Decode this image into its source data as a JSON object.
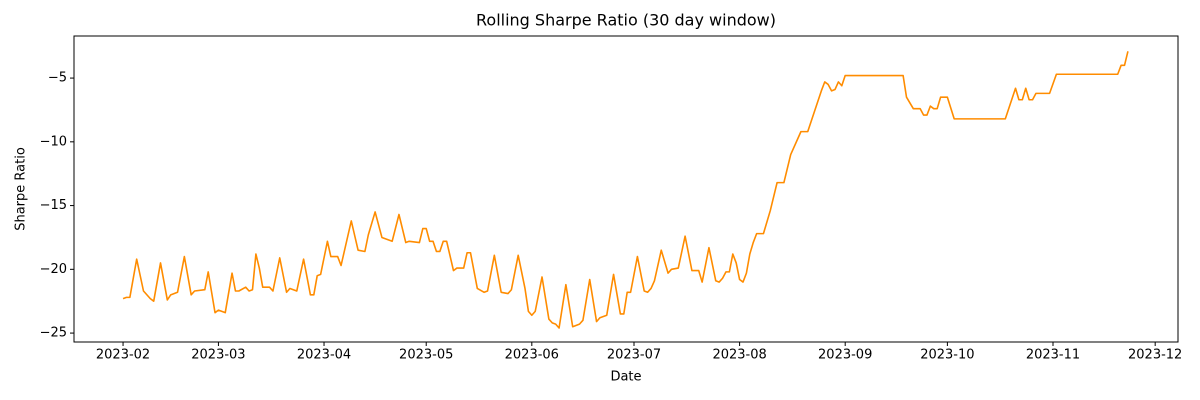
{
  "chart_data": {
    "type": "line",
    "title": "Rolling Sharpe Ratio (30 day window)",
    "x_label": "Date",
    "y_label": "Sharpe Ratio",
    "x": [
      19389,
      19390,
      19391,
      19393,
      19395,
      19397,
      19398,
      19400,
      19402,
      19403,
      19405,
      19407,
      19409,
      19410,
      19413,
      19414,
      19416,
      19417,
      19419,
      19421,
      19422,
      19423,
      19425,
      19426,
      19427,
      19428,
      19429,
      19430,
      19432,
      19433,
      19435,
      19437,
      19438,
      19440,
      19442,
      19444,
      19445,
      19446,
      19447,
      19449,
      19450,
      19452,
      19453,
      19456,
      19458,
      19460,
      19461,
      19463,
      19465,
      19468,
      19470,
      19472,
      19473,
      19476,
      19477,
      19478,
      19479,
      19480,
      19481,
      19482,
      19483,
      19484,
      19486,
      19487,
      19489,
      19490,
      19491,
      19493,
      19495,
      19496,
      19498,
      19500,
      19502,
      19503,
      19505,
      19507,
      19508,
      19509,
      19510,
      19512,
      19514,
      19515,
      19516,
      19517,
      19519,
      19521,
      19523,
      19524,
      19526,
      19528,
      19529,
      19531,
      19533,
      19535,
      19536,
      19537,
      19538,
      19540,
      19542,
      19543,
      19544,
      19545,
      19547,
      19549,
      19550,
      19552,
      19554,
      19556,
      19558,
      19559,
      19561,
      19563,
      19564,
      19565,
      19566,
      19567,
      19568,
      19569,
      19570,
      19571,
      19572,
      19573,
      19574,
      19575,
      19577,
      19579,
      19581,
      19583,
      19585,
      19588,
      19590,
      19594,
      19595,
      19596,
      19597,
      19598,
      19599,
      19600,
      19601,
      19618,
      19619,
      19621,
      19623,
      19624,
      19625,
      19626,
      19627,
      19628,
      19629,
      19631,
      19633,
      19648,
      19651,
      19652,
      19653,
      19654,
      19655,
      19656,
      19657,
      19661,
      19663,
      19681,
      19682,
      19683,
      19684
    ],
    "series": [
      {
        "name": "Rolling Sharpe",
        "color": "#ff8c00",
        "values": [
          -22.3,
          -22.2,
          -22.2,
          -19.2,
          -21.7,
          -22.3,
          -22.5,
          -19.5,
          -22.4,
          -22.0,
          -21.8,
          -19.0,
          -22.0,
          -21.7,
          -21.6,
          -20.2,
          -23.4,
          -23.2,
          -23.4,
          -20.3,
          -21.7,
          -21.7,
          -21.4,
          -21.7,
          -21.6,
          -18.8,
          -19.9,
          -21.4,
          -21.4,
          -21.7,
          -19.1,
          -21.8,
          -21.5,
          -21.7,
          -19.2,
          -22.0,
          -22.0,
          -20.5,
          -20.4,
          -17.8,
          -19.0,
          -19.0,
          -19.7,
          -16.2,
          -18.5,
          -18.6,
          -17.3,
          -15.5,
          -17.5,
          -17.8,
          -15.7,
          -17.9,
          -17.8,
          -17.9,
          -16.8,
          -16.8,
          -17.8,
          -17.8,
          -18.6,
          -18.6,
          -17.8,
          -17.8,
          -20.1,
          -19.9,
          -19.9,
          -18.7,
          -18.7,
          -21.5,
          -21.8,
          -21.7,
          -18.9,
          -21.8,
          -21.9,
          -21.6,
          -18.9,
          -21.5,
          -23.3,
          -23.6,
          -23.3,
          -20.6,
          -23.9,
          -24.2,
          -24.3,
          -24.6,
          -21.2,
          -24.5,
          -24.3,
          -24.0,
          -20.8,
          -24.1,
          -23.8,
          -23.6,
          -20.4,
          -23.5,
          -23.5,
          -21.8,
          -21.8,
          -19.0,
          -21.7,
          -21.8,
          -21.5,
          -20.9,
          -18.5,
          -20.3,
          -20.0,
          -19.9,
          -17.4,
          -20.1,
          -20.1,
          -21.0,
          -18.3,
          -20.9,
          -21.0,
          -20.7,
          -20.2,
          -20.2,
          -18.8,
          -19.5,
          -20.8,
          -21.0,
          -20.3,
          -18.8,
          -17.9,
          -17.2,
          -17.2,
          -15.4,
          -13.2,
          -13.2,
          -11.0,
          -9.2,
          -9.2,
          -6.0,
          -5.3,
          -5.5,
          -6.0,
          -5.9,
          -5.3,
          -5.6,
          -4.8,
          -4.8,
          -6.5,
          -7.4,
          -7.4,
          -7.9,
          -7.9,
          -7.2,
          -7.4,
          -7.4,
          -6.5,
          -6.5,
          -8.2,
          -8.2,
          -5.8,
          -6.7,
          -6.7,
          -5.8,
          -6.7,
          -6.7,
          -6.2,
          -6.2,
          -4.7,
          -4.7,
          -4.0,
          -4.0,
          -2.9
        ]
      }
    ],
    "xlim": [
      19374.6,
      19698.7
    ],
    "ylim": [
      -25.7,
      -1.7
    ],
    "xticks": [
      {
        "value": 19389,
        "label": "2023-02"
      },
      {
        "value": 19417,
        "label": "2023-03"
      },
      {
        "value": 19448,
        "label": "2023-04"
      },
      {
        "value": 19478,
        "label": "2023-05"
      },
      {
        "value": 19509,
        "label": "2023-06"
      },
      {
        "value": 19539,
        "label": "2023-07"
      },
      {
        "value": 19570,
        "label": "2023-08"
      },
      {
        "value": 19601,
        "label": "2023-09"
      },
      {
        "value": 19631,
        "label": "2023-10"
      },
      {
        "value": 19662,
        "label": "2023-11"
      },
      {
        "value": 19692,
        "label": "2023-12"
      }
    ],
    "yticks": [
      {
        "value": -25,
        "label": "−25"
      },
      {
        "value": -20,
        "label": "−20"
      },
      {
        "value": -15,
        "label": "−15"
      },
      {
        "value": -10,
        "label": "−10"
      },
      {
        "value": -5,
        "label": "−5"
      }
    ],
    "grid": false
  }
}
